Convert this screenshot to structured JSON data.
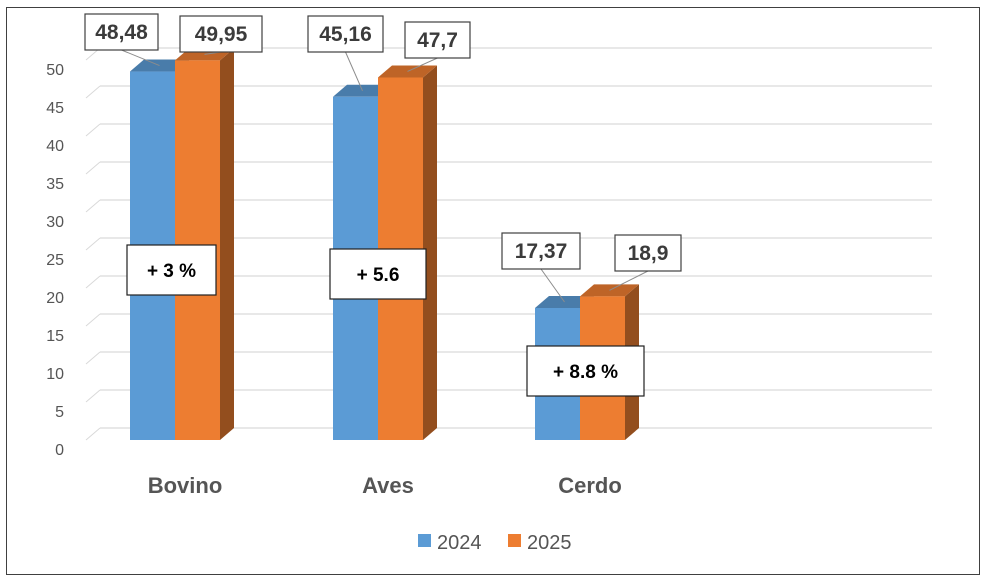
{
  "chart_data": {
    "type": "bar",
    "categories": [
      "Bovino",
      "Aves",
      "Cerdo"
    ],
    "series": [
      {
        "name": "2024",
        "values": [
          48.48,
          45.16,
          17.37
        ],
        "labels": [
          "48,48",
          "45,16",
          "17,37"
        ],
        "color": "#5b9bd5"
      },
      {
        "name": "2025",
        "values": [
          49.95,
          47.7,
          18.9
        ],
        "labels": [
          "49,95",
          "47,7",
          "18,9"
        ],
        "color": "#ed7d31"
      }
    ],
    "annotations": [
      "+ 3 %",
      "+ 5.6",
      "+ 8.8 %"
    ],
    "yticks": [
      "0",
      "5",
      "10",
      "15",
      "20",
      "25",
      "30",
      "35",
      "40",
      "45",
      "50"
    ],
    "ylim": [
      0,
      50
    ],
    "grid": true,
    "legend": "bottom",
    "title": "",
    "xlabel": "",
    "ylabel": ""
  }
}
